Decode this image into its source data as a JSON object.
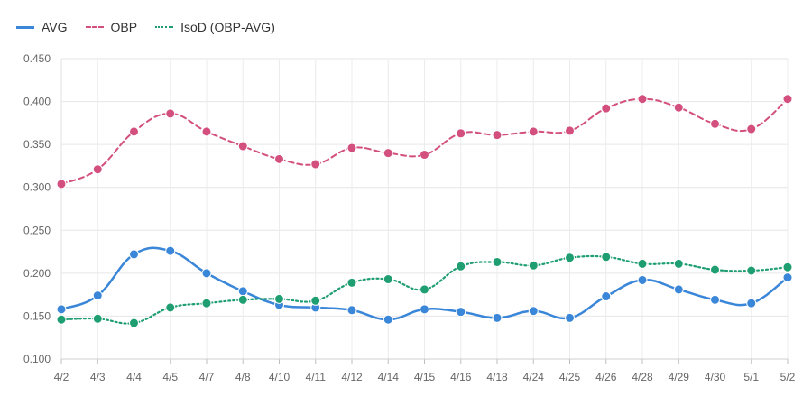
{
  "chart_data": {
    "type": "line",
    "categories": [
      "4/2",
      "4/3",
      "4/4",
      "4/5",
      "4/7",
      "4/8",
      "4/10",
      "4/11",
      "4/12",
      "4/14",
      "4/15",
      "4/16",
      "4/18",
      "4/24",
      "4/25",
      "4/26",
      "4/28",
      "4/29",
      "4/30",
      "5/1",
      "5/2"
    ],
    "series": [
      {
        "name": "AVG",
        "color": "#3a86d8",
        "style": "solid",
        "values": [
          0.158,
          0.174,
          0.222,
          0.226,
          0.2,
          0.179,
          0.163,
          0.16,
          0.157,
          0.146,
          0.158,
          0.155,
          0.148,
          0.156,
          0.148,
          0.173,
          0.192,
          0.181,
          0.169,
          0.165,
          0.195
        ]
      },
      {
        "name": "OBP",
        "color": "#d24f7e",
        "style": "dashed",
        "values": [
          0.304,
          0.321,
          0.365,
          0.386,
          0.365,
          0.348,
          0.333,
          0.327,
          0.346,
          0.34,
          0.338,
          0.363,
          0.361,
          0.365,
          0.366,
          0.392,
          0.403,
          0.393,
          0.374,
          0.368,
          0.403
        ]
      },
      {
        "name": "IsoD (OBP-AVG)",
        "color": "#1f9e72",
        "style": "dotted",
        "values": [
          0.146,
          0.147,
          0.142,
          0.16,
          0.165,
          0.169,
          0.17,
          0.168,
          0.189,
          0.193,
          0.181,
          0.208,
          0.213,
          0.209,
          0.218,
          0.219,
          0.211,
          0.211,
          0.204,
          0.203,
          0.207
        ]
      }
    ],
    "yticks": [
      "0.100",
      "0.150",
      "0.200",
      "0.250",
      "0.300",
      "0.350",
      "0.400",
      "0.450"
    ],
    "ylim": [
      0.1,
      0.45
    ],
    "grid": true,
    "legend": "top-left"
  }
}
